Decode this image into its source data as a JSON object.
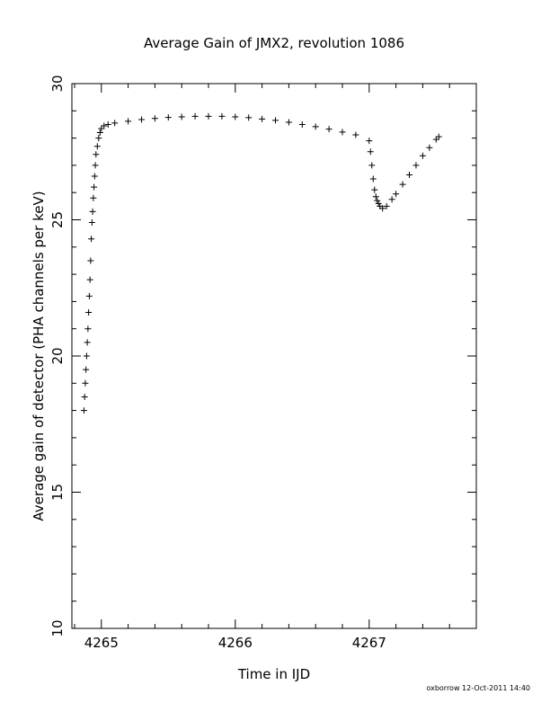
{
  "chart_data": {
    "type": "scatter",
    "title": "Average Gain of JMX2, revolution 1086",
    "xlabel": "Time in IJD",
    "ylabel": "Average gain of detector (PHA channels per keV)",
    "xlim": [
      4264.78,
      4267.8
    ],
    "ylim": [
      10,
      30
    ],
    "xticks": [
      4265,
      4266,
      4267
    ],
    "yticks": [
      10,
      15,
      20,
      25,
      30
    ],
    "marker": "plus",
    "color": "#000000",
    "grid": false,
    "series": [
      {
        "x": [
          4264.87,
          4264.875,
          4264.88,
          4264.885,
          4264.89,
          4264.895,
          4264.9,
          4264.905,
          4264.91,
          4264.915,
          4264.92,
          4264.925,
          4264.93,
          4264.935,
          4264.94,
          4264.945,
          4264.95,
          4264.955,
          4264.96,
          4264.97,
          4264.98,
          4264.99,
          4265.0,
          4265.02,
          4265.05,
          4265.1,
          4265.2,
          4265.3,
          4265.4,
          4265.5,
          4265.6,
          4265.7,
          4265.8,
          4265.9,
          4266.0,
          4266.1,
          4266.2,
          4266.3,
          4266.4,
          4266.5,
          4266.6,
          4266.7,
          4266.8,
          4266.9,
          4267.0,
          4267.01,
          4267.02,
          4267.03,
          4267.04,
          4267.05,
          4267.06,
          4267.07,
          4267.08,
          4267.1,
          4267.13,
          4267.17,
          4267.2,
          4267.25,
          4267.3,
          4267.35,
          4267.4,
          4267.45,
          4267.5,
          4267.52
        ],
        "y": [
          18.0,
          18.5,
          19.0,
          19.5,
          20.0,
          20.5,
          21.0,
          21.6,
          22.2,
          22.8,
          23.5,
          24.3,
          24.9,
          25.3,
          25.8,
          26.2,
          26.6,
          27.0,
          27.4,
          27.7,
          28.0,
          28.2,
          28.35,
          28.45,
          28.5,
          28.55,
          28.62,
          28.68,
          28.72,
          28.76,
          28.78,
          28.8,
          28.8,
          28.8,
          28.78,
          28.75,
          28.7,
          28.65,
          28.58,
          28.5,
          28.42,
          28.33,
          28.22,
          28.12,
          27.9,
          27.5,
          27.0,
          26.5,
          26.1,
          25.85,
          25.7,
          25.6,
          25.5,
          25.42,
          25.5,
          25.75,
          25.95,
          26.3,
          26.65,
          27.0,
          27.35,
          27.65,
          27.95,
          28.05
        ]
      }
    ]
  },
  "footer": "oxborrow  12-Oct-2011 14:40"
}
